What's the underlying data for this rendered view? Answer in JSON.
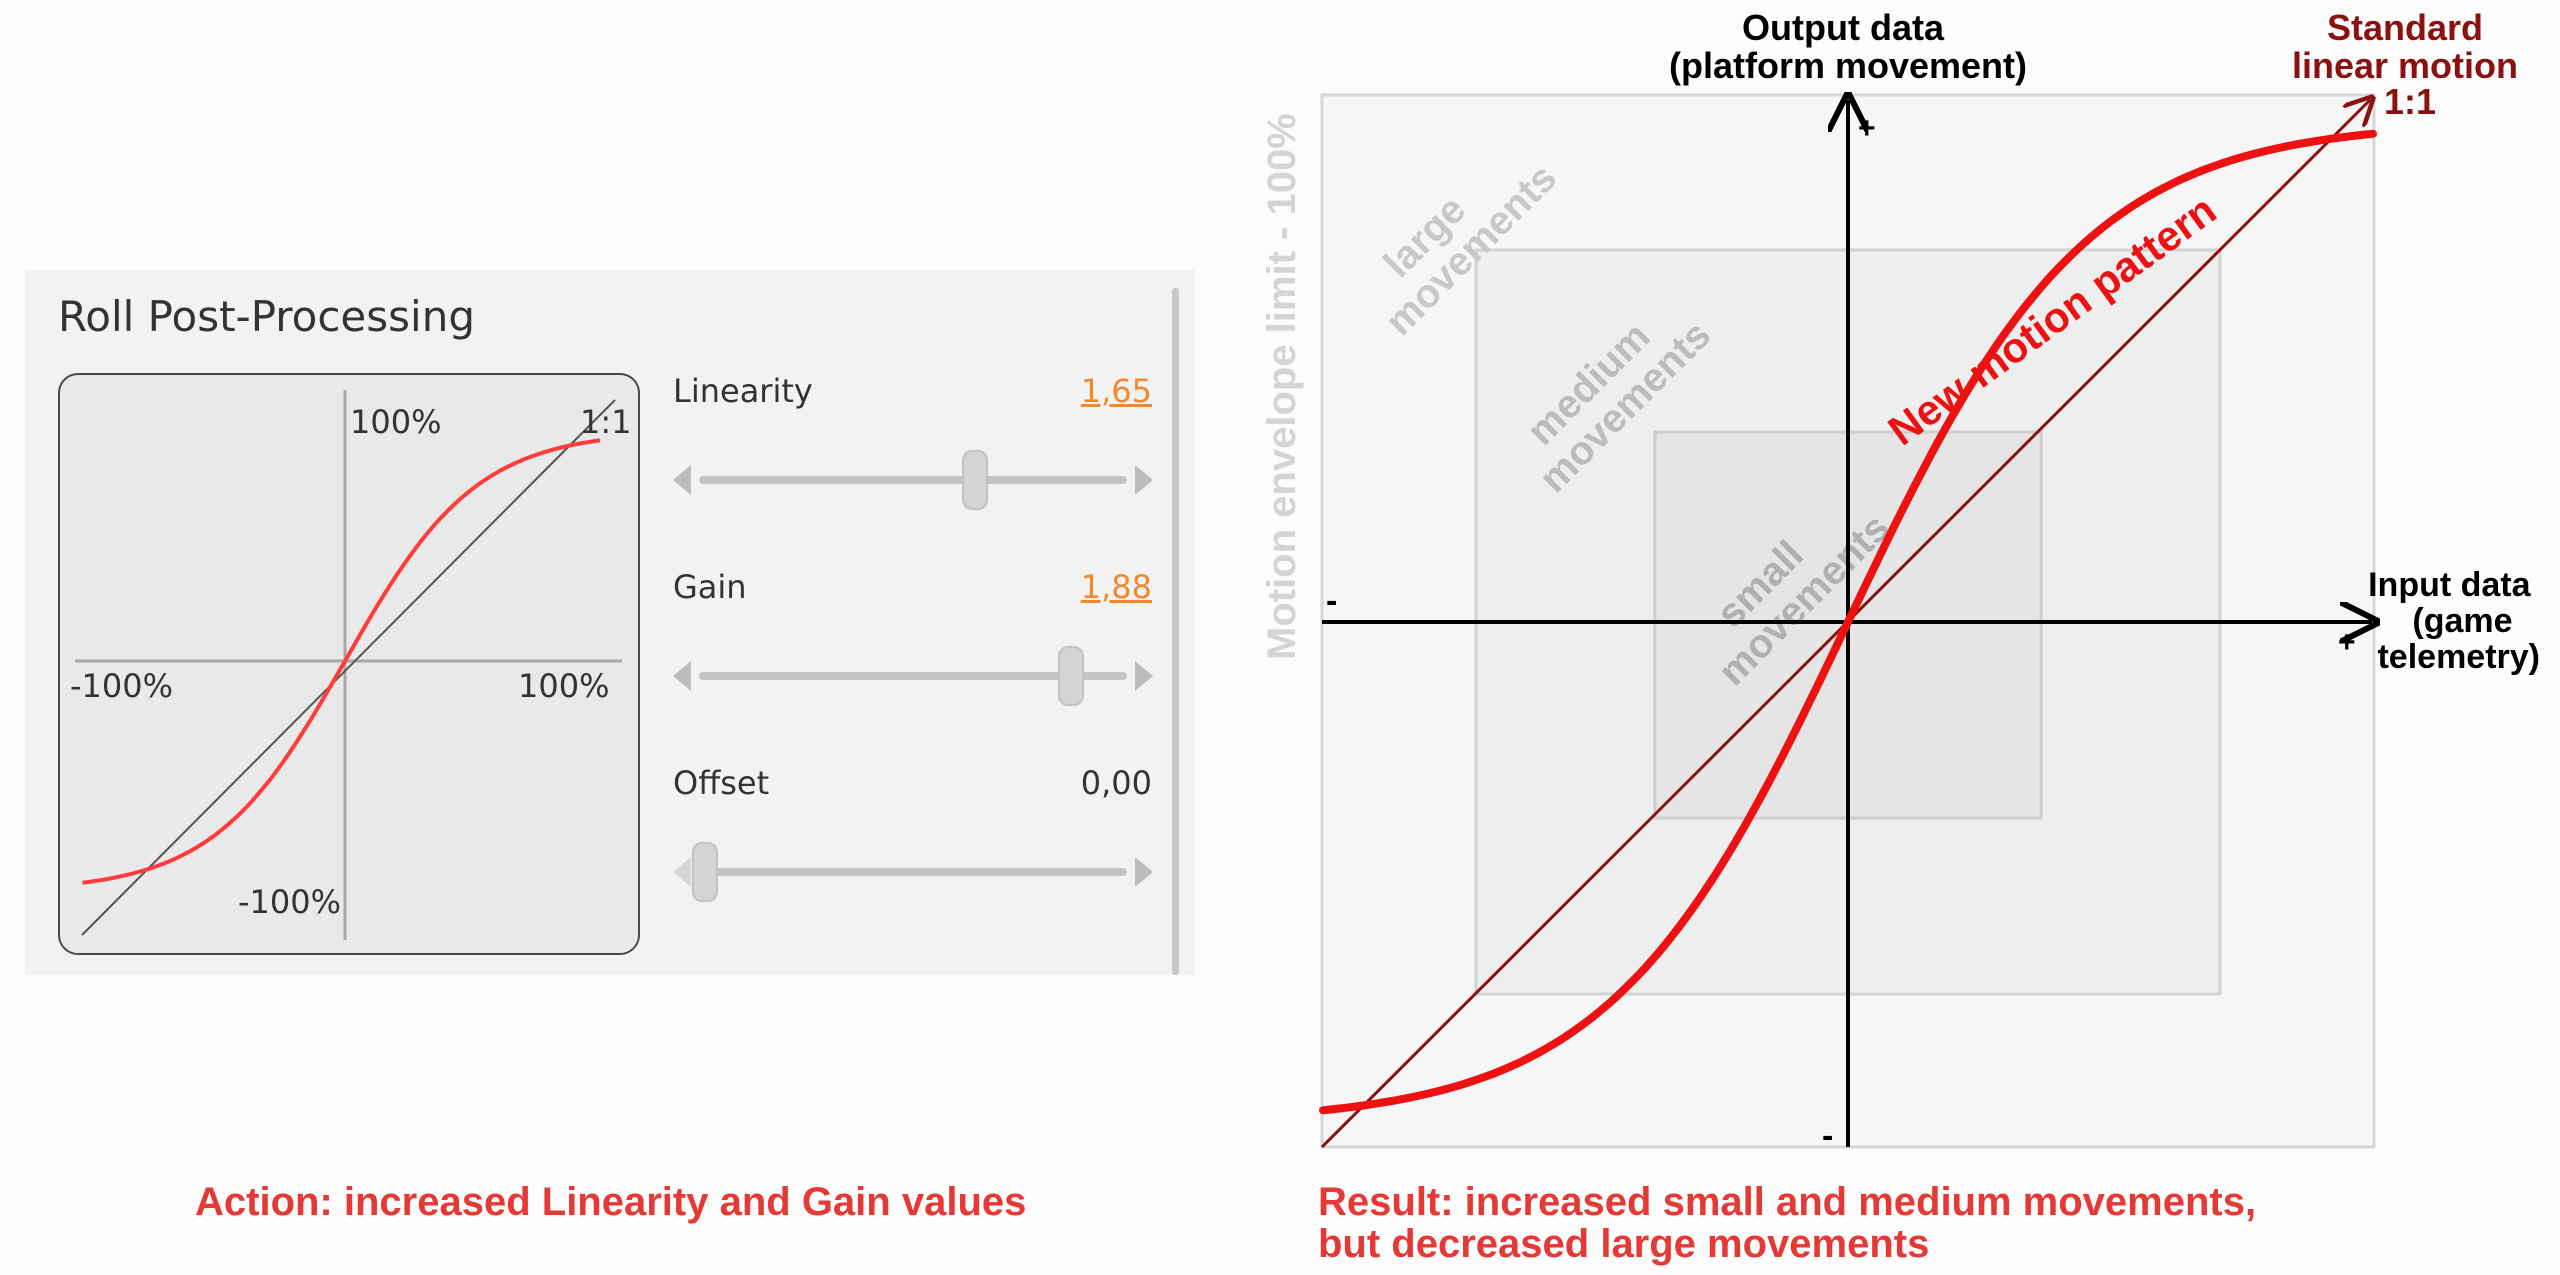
{
  "panel": {
    "title": "Roll Post-Processing",
    "preview": {
      "label_top": "100%",
      "label_one_to_one": "1:1",
      "label_left": "-100%",
      "label_right": "100%",
      "label_bottom": "-100%",
      "curve_color": "#ff3b3b"
    },
    "controls": [
      {
        "label": "Linearity",
        "value": "1,65",
        "fraction": 0.65
      },
      {
        "label": "Gain",
        "value": "1,88",
        "fraction": 0.88
      },
      {
        "label": "Offset",
        "value": "0,00",
        "fraction": 0.0
      }
    ],
    "accent_color": "#f08a2c"
  },
  "diagram": {
    "y_axis_title_line1": "Output data",
    "y_axis_title_line2": "(platform movement)",
    "y_plus": "+",
    "y_minus": "-",
    "x_axis_title_line1": "Input data",
    "x_axis_title_line2": "(game",
    "x_axis_title_line3": "telemetry)",
    "x_plus": "+",
    "x_minus": "-",
    "linear_label_line1": "Standard",
    "linear_label_line2": "linear motion",
    "linear_label_line3": "1:1",
    "curve_label": "New motion pattern",
    "envelope_label": "Motion envelope limit - 100%",
    "zone_large_line1": "large",
    "zone_large_line2": "movements",
    "zone_medium_line1": "medium",
    "zone_medium_line2": "movements",
    "zone_small_line1": "small",
    "zone_small_line2": "movements",
    "linear_color": "#8b1010",
    "curve_color": "#ee1111"
  },
  "captions": {
    "action": "Action: increased Linearity and Gain values",
    "result_line1": "Result: increased small and medium movements,",
    "result_line2": "but decreased large movements"
  }
}
